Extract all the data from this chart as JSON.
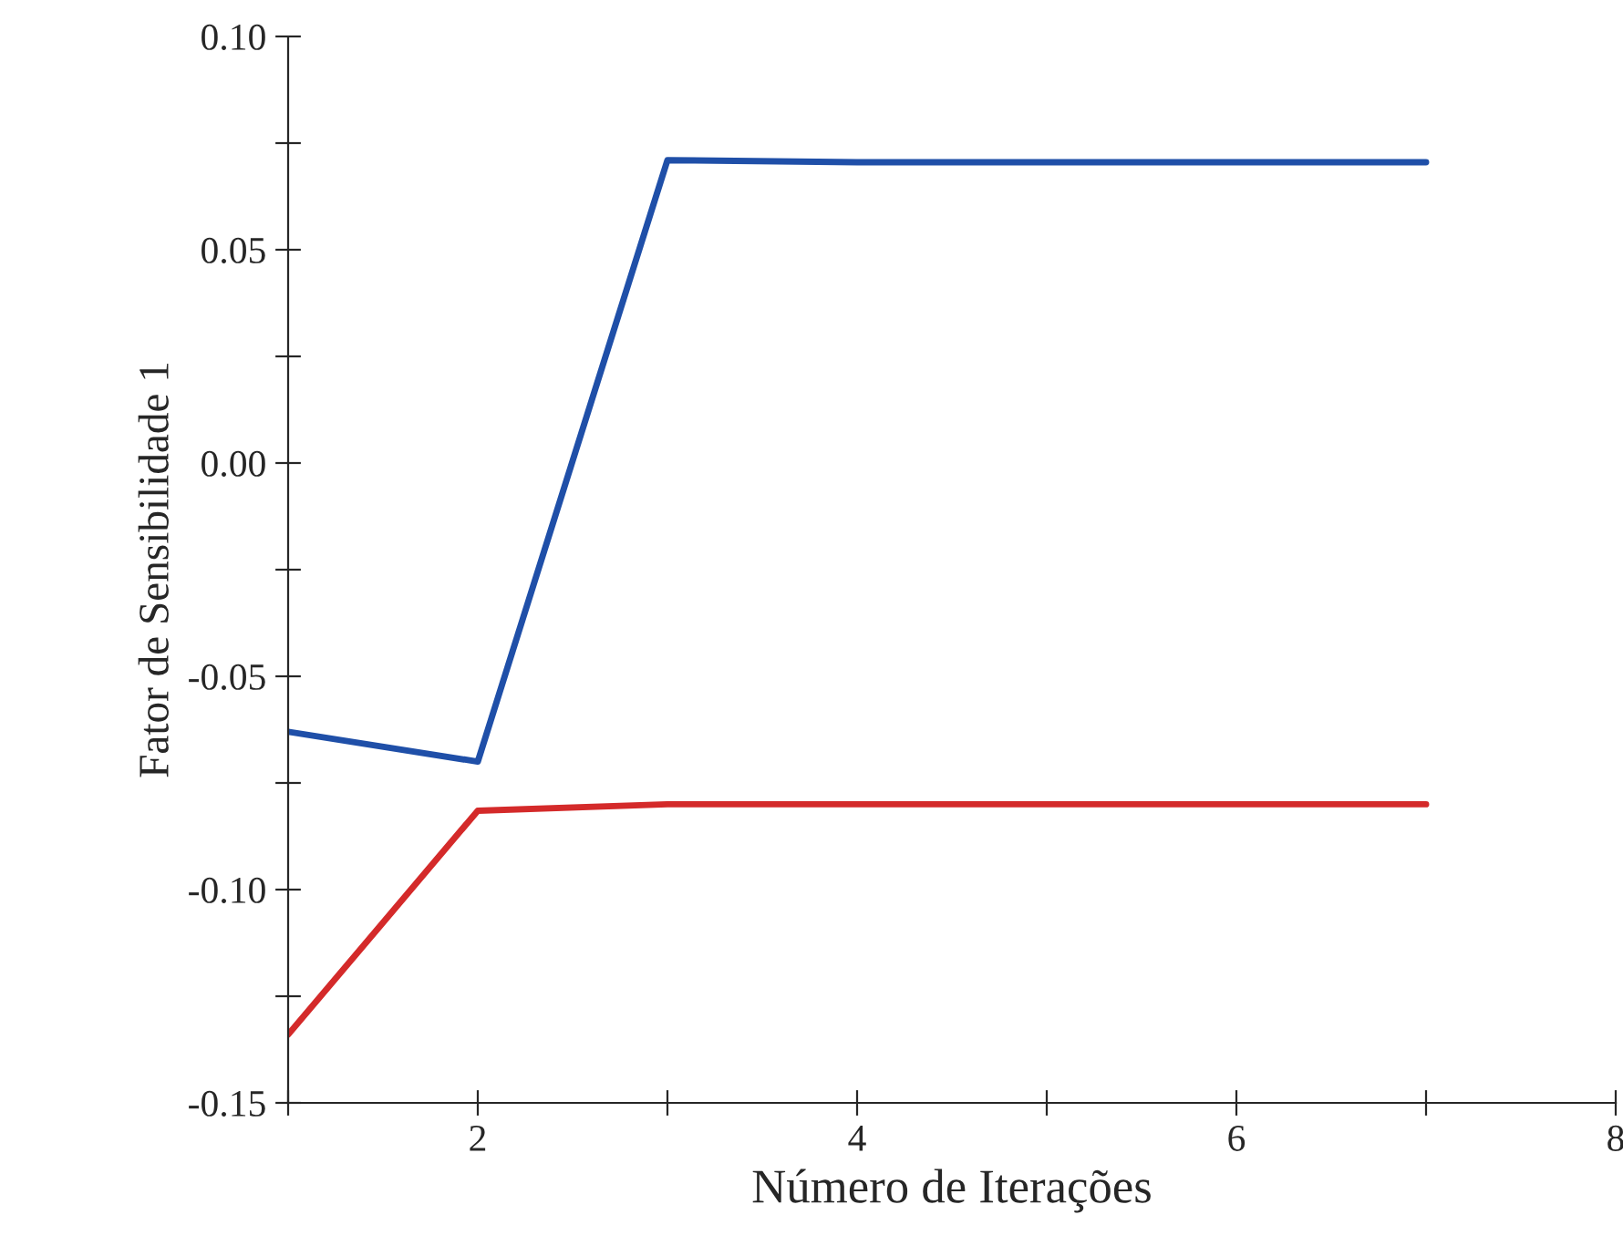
{
  "chart_data": {
    "type": "line",
    "xlabel": "Número de Iterações",
    "ylabel": "Fator de Sensibilidade 1",
    "x": [
      1,
      2,
      3,
      4,
      5,
      6,
      7
    ],
    "series": [
      {
        "color": "#1f4fa8",
        "values": [
          -0.063,
          -0.07,
          0.071,
          0.0705,
          0.0705,
          0.0705,
          0.0705
        ]
      },
      {
        "color": "#d42a2a",
        "values": [
          -0.134,
          -0.0815,
          -0.08,
          -0.08,
          -0.08,
          -0.08,
          -0.08
        ]
      }
    ],
    "xlim": [
      1,
      8
    ],
    "xticks": [
      {
        "value": 1,
        "label": null
      },
      2,
      {
        "value": 3,
        "label": null
      },
      4,
      {
        "value": 5,
        "label": null
      },
      6,
      {
        "value": 7,
        "label": null
      },
      8
    ],
    "ylim": [
      -0.15,
      0.1
    ],
    "yticks": [
      {
        "value": -0.15,
        "label": "-0.15"
      },
      {
        "value": -0.125,
        "label": null
      },
      {
        "value": -0.1,
        "label": "-0.10"
      },
      {
        "value": -0.075,
        "label": null
      },
      {
        "value": -0.05,
        "label": "-0.05"
      },
      {
        "value": -0.025,
        "label": null
      },
      {
        "value": 0,
        "label": "0.00"
      },
      {
        "value": 0.025,
        "label": null
      },
      {
        "value": 0.05,
        "label": "0.05"
      },
      {
        "value": 0.075,
        "label": null
      },
      {
        "value": 0.1,
        "label": "0.10"
      }
    ],
    "grid": false,
    "legend": false,
    "marker": "none",
    "line_style": "solid"
  }
}
